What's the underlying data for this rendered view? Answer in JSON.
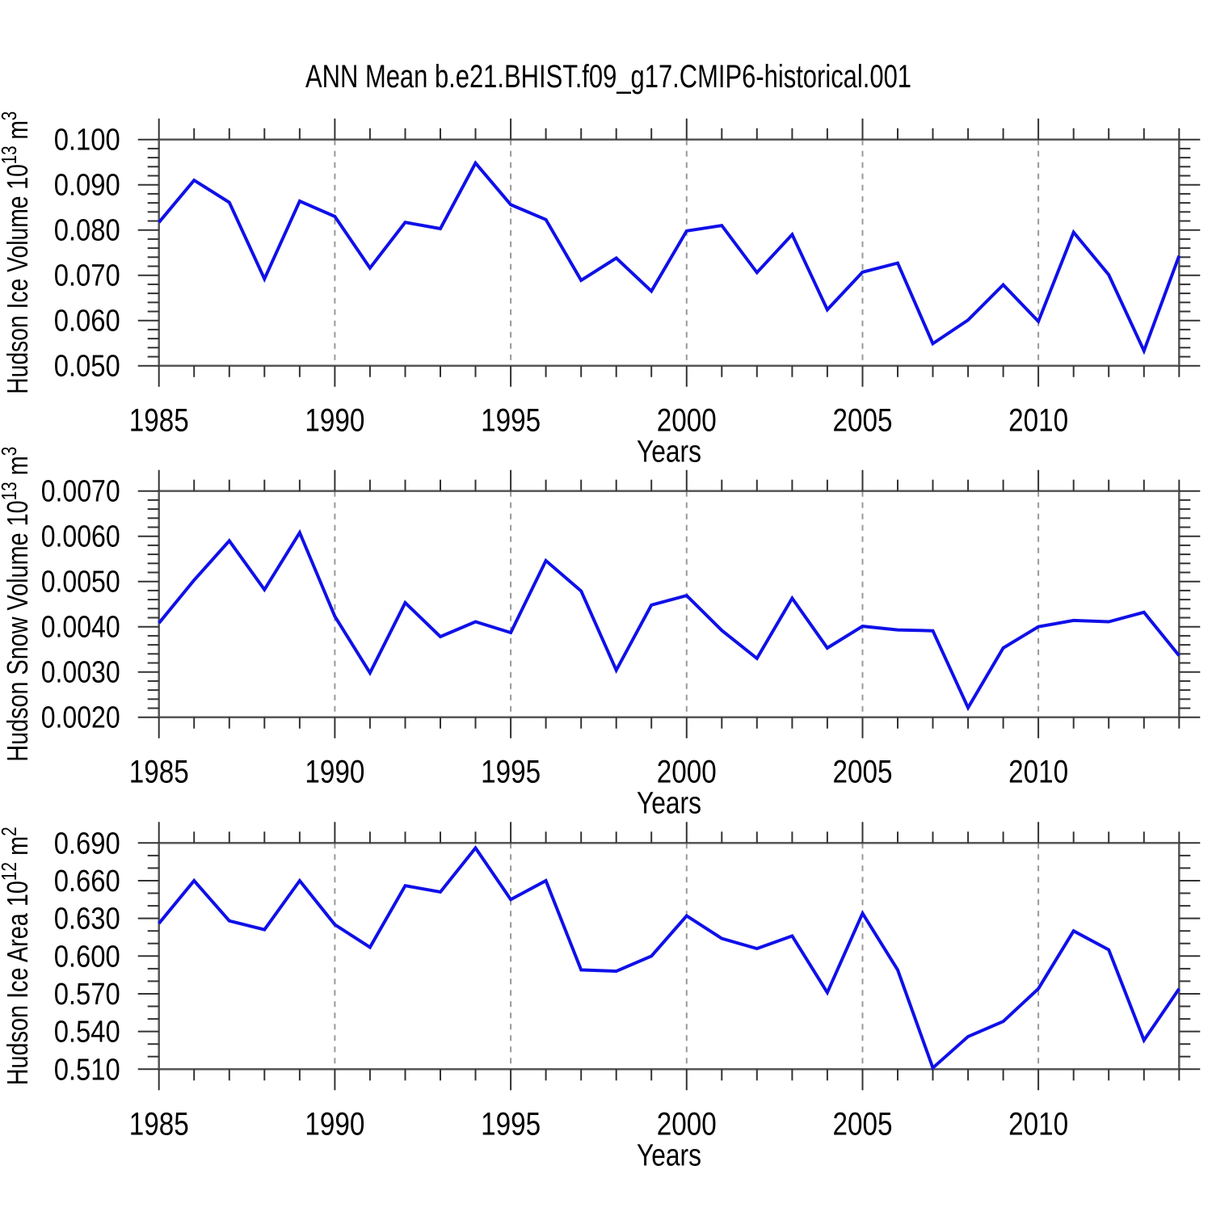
{
  "page_title": "ANN Mean b.e21.BHIST.f09_g17.CMIP6-historical.001",
  "colors": {
    "line": "#0f10e8",
    "frame": "#555555",
    "ticks": "#333333",
    "grid": "#999999",
    "text": "#000000",
    "background": "#ffffff"
  },
  "x_axis": {
    "label": "Years",
    "range": [
      1985,
      2014
    ],
    "major_ticks": [
      1985,
      1990,
      1995,
      2000,
      2005,
      2010
    ],
    "tick_labels": [
      "1985",
      "1990",
      "1995",
      "2000",
      "2005",
      "2010"
    ],
    "minor_step": 1,
    "gridline_years": [
      1990,
      1995,
      2000,
      2005,
      2010
    ],
    "years": [
      1985,
      1986,
      1987,
      1988,
      1989,
      1990,
      1991,
      1992,
      1993,
      1994,
      1995,
      1996,
      1997,
      1998,
      1999,
      2000,
      2001,
      2002,
      2003,
      2004,
      2005,
      2006,
      2007,
      2008,
      2009,
      2010,
      2011,
      2012,
      2013,
      2014
    ]
  },
  "chart_data": [
    {
      "type": "line",
      "name": "hudson-ice-volume",
      "title": "",
      "xlabel": "Years",
      "ylabel": "Hudson Ice Volume 10^13 m^3",
      "ylabel_segments": [
        {
          "t": "Hudson Ice Volume 10",
          "sup": false
        },
        {
          "t": "13",
          "sup": true
        },
        {
          "t": " m",
          "sup": false
        },
        {
          "t": "3",
          "sup": true
        }
      ],
      "ylim": [
        0.05,
        0.1
      ],
      "yticks": {
        "values": [
          0.05,
          0.06,
          0.07,
          0.08,
          0.09,
          0.1
        ],
        "labels": [
          "0.050",
          "0.060",
          "0.070",
          "0.080",
          "0.090",
          "0.100"
        ],
        "minor_step": 0.002
      },
      "grid": true,
      "legend": "none",
      "values": [
        0.0817,
        0.091,
        0.0861,
        0.0692,
        0.0864,
        0.083,
        0.0716,
        0.0817,
        0.0803,
        0.0948,
        0.0856,
        0.0823,
        0.0689,
        0.0738,
        0.0665,
        0.0798,
        0.081,
        0.0706,
        0.079,
        0.0624,
        0.0707,
        0.0727,
        0.0549,
        0.0601,
        0.0679,
        0.0598,
        0.0795,
        0.0701,
        0.0533,
        0.0743
      ]
    },
    {
      "type": "line",
      "name": "hudson-snow-volume",
      "title": "",
      "xlabel": "Years",
      "ylabel": "Hudson Snow Volume 10^13 m^3",
      "ylabel_segments": [
        {
          "t": "Hudson Snow Volume 10",
          "sup": false
        },
        {
          "t": "13",
          "sup": true
        },
        {
          "t": " m",
          "sup": false
        },
        {
          "t": "3",
          "sup": true
        }
      ],
      "ylim": [
        0.002,
        0.007
      ],
      "yticks": {
        "values": [
          0.002,
          0.003,
          0.004,
          0.005,
          0.006,
          0.007
        ],
        "labels": [
          "0.0020",
          "0.0030",
          "0.0040",
          "0.0050",
          "0.0060",
          "0.0070"
        ],
        "minor_step": 0.0002
      },
      "grid": true,
      "legend": "none",
      "values": [
        0.00408,
        0.00503,
        0.0059,
        0.00482,
        0.00608,
        0.00423,
        0.00298,
        0.00453,
        0.00378,
        0.00411,
        0.00387,
        0.00546,
        0.00479,
        0.00304,
        0.00448,
        0.00469,
        0.00392,
        0.0033,
        0.00463,
        0.00353,
        0.00401,
        0.00393,
        0.00391,
        0.00221,
        0.00353,
        0.004,
        0.00414,
        0.00411,
        0.00432,
        0.00336
      ]
    },
    {
      "type": "line",
      "name": "hudson-ice-area",
      "title": "",
      "xlabel": "Years",
      "ylabel": "Hudson Ice Area 10^12 m^2",
      "ylabel_segments": [
        {
          "t": "Hudson Ice Area 10",
          "sup": false
        },
        {
          "t": "12",
          "sup": true
        },
        {
          "t": " m",
          "sup": false
        },
        {
          "t": "2",
          "sup": true
        }
      ],
      "ylim": [
        0.51,
        0.69
      ],
      "yticks": {
        "values": [
          0.51,
          0.54,
          0.57,
          0.6,
          0.63,
          0.66,
          0.69
        ],
        "labels": [
          "0.510",
          "0.540",
          "0.570",
          "0.600",
          "0.630",
          "0.660",
          "0.690"
        ],
        "minor_step": 0.01
      },
      "grid": true,
      "legend": "none",
      "values": [
        0.626,
        0.66,
        0.628,
        0.621,
        0.66,
        0.625,
        0.607,
        0.656,
        0.651,
        0.686,
        0.645,
        0.66,
        0.589,
        0.588,
        0.6,
        0.632,
        0.614,
        0.606,
        0.616,
        0.571,
        0.634,
        0.589,
        0.511,
        0.536,
        0.548,
        0.574,
        0.62,
        0.605,
        0.533,
        0.574
      ]
    }
  ]
}
